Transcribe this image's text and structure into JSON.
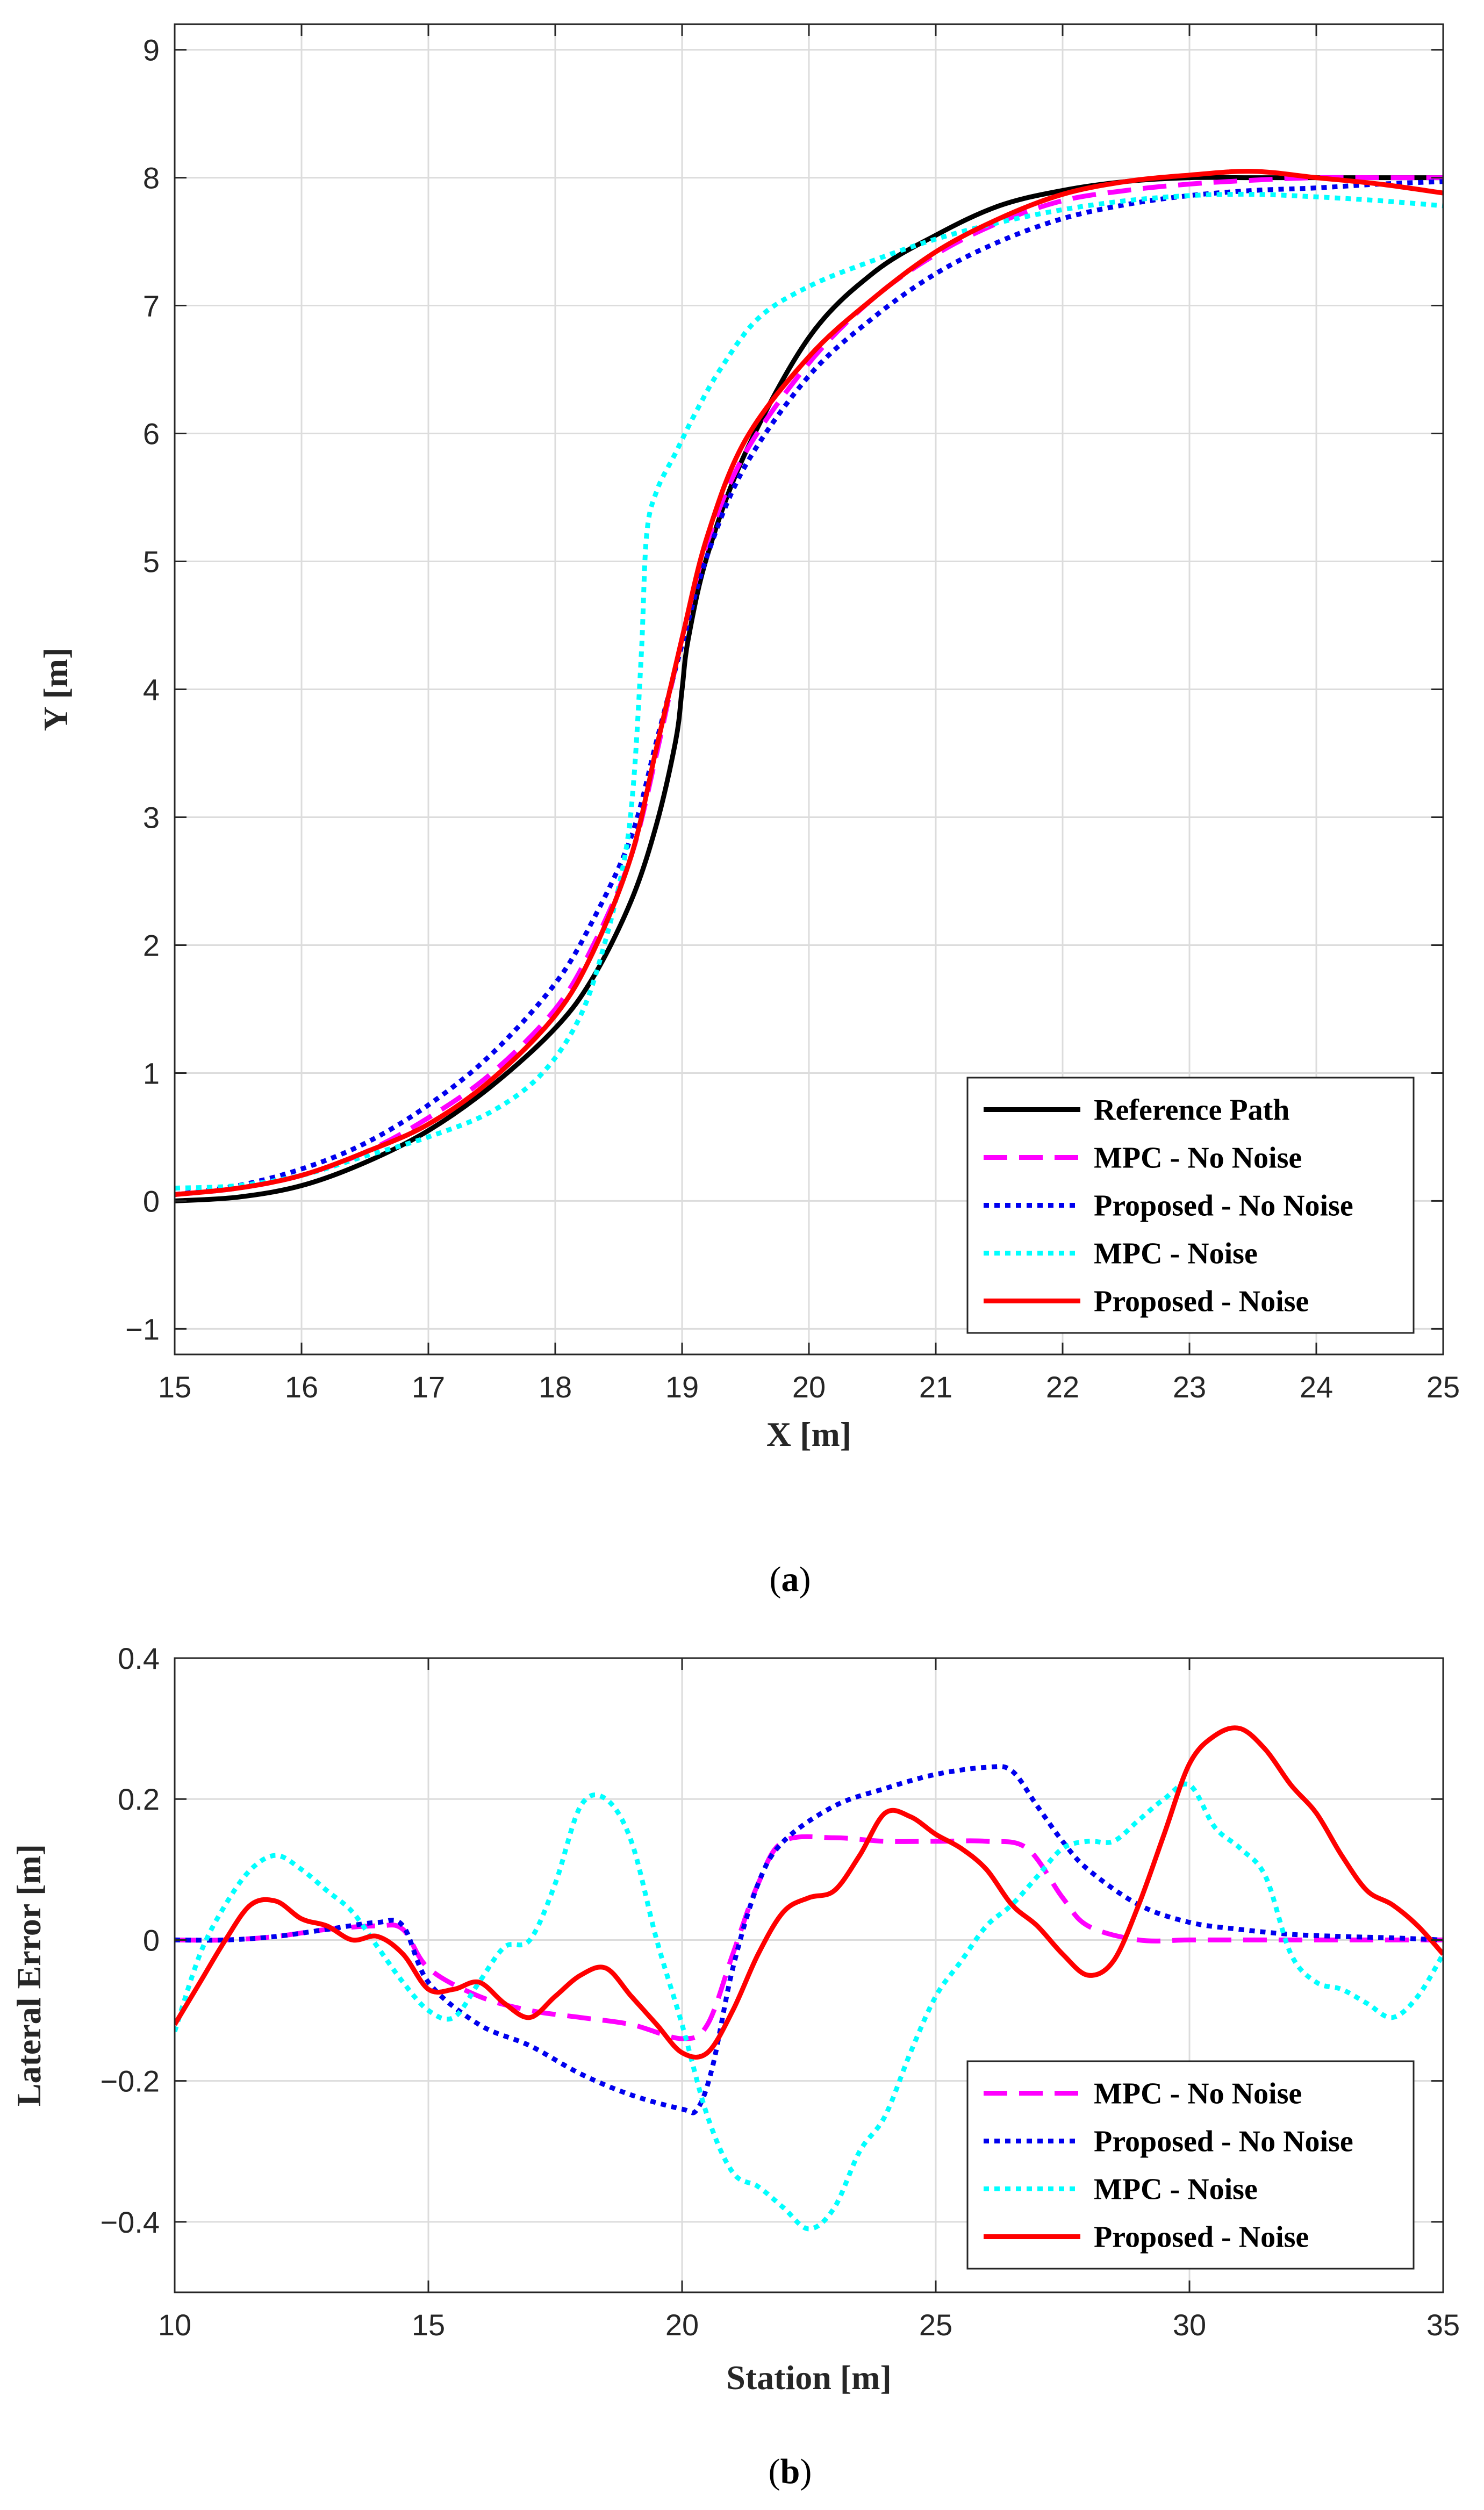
{
  "chart_data": [
    {
      "type": "line",
      "subplot_label": "(a)",
      "subplot_letter": "a",
      "xlabel": "X [m]",
      "ylabel": "Y [m]",
      "xlim": [
        15,
        25
      ],
      "ylim": [
        -1.2,
        9.2
      ],
      "xticks": [
        "15",
        "16",
        "17",
        "18",
        "19",
        "20",
        "21",
        "22",
        "23",
        "24",
        "25"
      ],
      "yticks": [
        "−1",
        "0",
        "1",
        "2",
        "3",
        "4",
        "5",
        "6",
        "7",
        "8",
        "9"
      ],
      "grid": true,
      "legend_position": "bottom-right",
      "series": [
        {
          "name": "Reference Path",
          "color": "#000000",
          "style": "solid",
          "x": [
            15,
            15.5,
            16,
            16.5,
            17,
            17.5,
            18,
            18.3,
            18.6,
            18.8,
            18.95,
            19,
            19.05,
            19.2,
            19.5,
            20,
            20.5,
            21,
            21.5,
            22,
            22.5,
            23,
            23.5,
            24,
            24.5,
            25
          ],
          "y": [
            0,
            0.03,
            0.12,
            0.3,
            0.55,
            0.9,
            1.35,
            1.75,
            2.35,
            2.95,
            3.6,
            4.0,
            4.4,
            5.05,
            5.85,
            6.75,
            7.25,
            7.55,
            7.78,
            7.9,
            7.97,
            8.0,
            8.0,
            8.0,
            8.0,
            8.0
          ]
        },
        {
          "name": "MPC - No Noise",
          "color": "#ff00ff",
          "style": "dashed",
          "x": [
            15,
            15.5,
            16,
            16.5,
            17,
            17.5,
            18,
            18.3,
            18.6,
            18.8,
            19,
            19.2,
            19.5,
            20,
            20.5,
            21,
            21.5,
            22,
            22.5,
            23,
            23.5,
            24,
            24.5,
            25
          ],
          "y": [
            0.05,
            0.1,
            0.2,
            0.38,
            0.65,
            1.0,
            1.5,
            2.0,
            2.7,
            3.5,
            4.4,
            5.15,
            5.85,
            6.55,
            7.05,
            7.4,
            7.65,
            7.82,
            7.9,
            7.95,
            7.98,
            8.0,
            8.0,
            8.0
          ]
        },
        {
          "name": "Proposed - No Noise",
          "color": "#0000ee",
          "style": "dotted",
          "x": [
            15,
            15.5,
            16,
            16.5,
            17,
            17.5,
            18,
            18.3,
            18.6,
            18.8,
            19,
            19.2,
            19.5,
            20,
            20.5,
            21,
            21.5,
            22,
            22.5,
            23,
            23.5,
            24,
            24.5,
            25
          ],
          "y": [
            0.05,
            0.12,
            0.25,
            0.45,
            0.75,
            1.15,
            1.7,
            2.2,
            2.85,
            3.6,
            4.35,
            5.05,
            5.75,
            6.45,
            6.9,
            7.25,
            7.5,
            7.68,
            7.79,
            7.86,
            7.9,
            7.92,
            7.95,
            7.97
          ]
        },
        {
          "name": "MPC - Noise",
          "color": "#00ffff",
          "style": "dotted",
          "x": [
            15,
            15.5,
            16,
            16.5,
            17,
            17.5,
            17.9,
            18.2,
            18.4,
            18.55,
            18.62,
            18.68,
            18.72,
            18.8,
            18.95,
            19.1,
            19.3,
            19.6,
            20,
            20.5,
            21,
            21.5,
            22,
            22.5,
            23,
            23.5,
            24,
            24.5,
            25
          ],
          "y": [
            0.1,
            0.12,
            0.2,
            0.35,
            0.5,
            0.7,
            1.0,
            1.45,
            2.05,
            2.7,
            3.3,
            4.3,
            5.2,
            5.55,
            5.85,
            6.15,
            6.5,
            6.9,
            7.15,
            7.35,
            7.52,
            7.65,
            7.75,
            7.82,
            7.86,
            7.87,
            7.85,
            7.82,
            7.78
          ]
        },
        {
          "name": "Proposed - Noise",
          "color": "#ff0000",
          "style": "solid",
          "x": [
            15,
            15.5,
            16,
            16.5,
            17,
            17.5,
            18,
            18.3,
            18.6,
            18.8,
            19,
            19.2,
            19.5,
            20,
            20.5,
            21,
            21.5,
            22,
            22.5,
            23,
            23.5,
            24,
            24.5,
            25
          ],
          "y": [
            0.05,
            0.1,
            0.2,
            0.38,
            0.6,
            0.95,
            1.45,
            1.95,
            2.7,
            3.55,
            4.4,
            5.2,
            5.95,
            6.6,
            7.05,
            7.42,
            7.68,
            7.87,
            7.97,
            8.02,
            8.05,
            8.0,
            7.95,
            7.88
          ]
        }
      ],
      "legend": [
        "Reference Path",
        "MPC - No Noise",
        "Proposed - No Noise",
        "MPC - Noise",
        "Proposed - Noise"
      ]
    },
    {
      "type": "line",
      "subplot_label": "(b)",
      "subplot_letter": "b",
      "xlabel": "Station [m]",
      "ylabel": "Lateral Error [m]",
      "xlim": [
        10,
        35
      ],
      "ylim": [
        -0.5,
        0.4
      ],
      "xticks": [
        "10",
        "15",
        "20",
        "25",
        "30",
        "35"
      ],
      "yticks": [
        "−0.4",
        "−0.2",
        "0",
        "0.2",
        "0.4"
      ],
      "grid": true,
      "legend_position": "bottom-right",
      "series": [
        {
          "name": "MPC - No Noise",
          "color": "#ff00ff",
          "style": "dashed",
          "x": [
            10,
            11,
            12,
            13,
            14,
            14.5,
            15,
            16,
            17,
            18,
            19,
            20,
            20.5,
            21,
            21.5,
            22,
            23,
            24,
            25,
            26,
            26.8,
            27.5,
            28,
            29,
            30,
            31,
            32,
            33,
            34,
            35
          ],
          "y": [
            0,
            0,
            0.005,
            0.015,
            0.02,
            0.015,
            -0.04,
            -0.08,
            -0.1,
            -0.11,
            -0.12,
            -0.14,
            -0.12,
            -0.02,
            0.08,
            0.14,
            0.145,
            0.14,
            0.14,
            0.14,
            0.13,
            0.06,
            0.02,
            0.0,
            0.0,
            0.0,
            0.0,
            0.0,
            0.0,
            0.0
          ]
        },
        {
          "name": "Proposed - No Noise",
          "color": "#0000ee",
          "style": "dotted",
          "x": [
            10,
            11,
            12,
            13,
            14,
            14.5,
            15,
            16,
            17,
            18,
            19,
            20,
            20.3,
            20.6,
            21,
            21.5,
            22,
            23,
            24,
            25,
            26,
            26.5,
            27,
            27.5,
            28,
            29,
            30,
            31,
            32,
            33,
            34,
            35
          ],
          "y": [
            0,
            0,
            0.005,
            0.015,
            0.025,
            0.02,
            -0.06,
            -0.12,
            -0.15,
            -0.19,
            -0.22,
            -0.24,
            -0.24,
            -0.18,
            -0.04,
            0.08,
            0.14,
            0.19,
            0.215,
            0.235,
            0.245,
            0.24,
            0.19,
            0.14,
            0.1,
            0.05,
            0.025,
            0.015,
            0.008,
            0.005,
            0.003,
            0.0
          ]
        },
        {
          "name": "MPC - Noise",
          "color": "#00ffff",
          "style": "dotted",
          "x": [
            10,
            10.5,
            11,
            11.5,
            12,
            12.5,
            13,
            13.5,
            14,
            14.5,
            15,
            15.5,
            16,
            16.5,
            17,
            17.5,
            18,
            18.5,
            19,
            19.5,
            20,
            20.5,
            21,
            21.5,
            22,
            22.5,
            23,
            23.5,
            24,
            24.5,
            25,
            25.5,
            26,
            26.5,
            27,
            27.5,
            28,
            28.5,
            29,
            29.5,
            30,
            30.5,
            31,
            31.5,
            32,
            32.5,
            33,
            33.5,
            34,
            34.5,
            35
          ],
          "y": [
            -0.13,
            -0.02,
            0.05,
            0.1,
            0.12,
            0.1,
            0.07,
            0.04,
            -0.01,
            -0.06,
            -0.1,
            -0.11,
            -0.06,
            -0.01,
            0.0,
            0.08,
            0.19,
            0.2,
            0.14,
            0.0,
            -0.12,
            -0.25,
            -0.33,
            -0.35,
            -0.38,
            -0.41,
            -0.38,
            -0.3,
            -0.25,
            -0.16,
            -0.08,
            -0.03,
            0.02,
            0.05,
            0.09,
            0.13,
            0.14,
            0.14,
            0.17,
            0.2,
            0.22,
            0.16,
            0.13,
            0.09,
            -0.02,
            -0.06,
            -0.07,
            -0.09,
            -0.11,
            -0.08,
            -0.02
          ]
        },
        {
          "name": "Proposed - Noise",
          "color": "#ff0000",
          "style": "solid",
          "x": [
            10,
            10.5,
            11,
            11.5,
            12,
            12.5,
            13,
            13.5,
            14,
            14.5,
            15,
            15.5,
            16,
            16.5,
            17,
            17.5,
            18,
            18.5,
            19,
            19.5,
            20,
            20.5,
            21,
            21.5,
            22,
            22.5,
            23,
            23.5,
            24,
            24.5,
            25,
            25.5,
            26,
            26.5,
            27,
            27.5,
            28,
            28.5,
            29,
            29.5,
            30,
            30.5,
            31,
            31.5,
            32,
            32.5,
            33,
            33.5,
            34,
            34.5,
            35
          ],
          "y": [
            -0.12,
            -0.06,
            0.0,
            0.05,
            0.055,
            0.03,
            0.02,
            0.0,
            0.005,
            -0.02,
            -0.07,
            -0.07,
            -0.06,
            -0.09,
            -0.11,
            -0.08,
            -0.05,
            -0.04,
            -0.08,
            -0.12,
            -0.16,
            -0.16,
            -0.1,
            -0.02,
            0.04,
            0.06,
            0.07,
            0.12,
            0.18,
            0.175,
            0.15,
            0.13,
            0.1,
            0.05,
            0.02,
            -0.02,
            -0.05,
            -0.03,
            0.05,
            0.15,
            0.25,
            0.29,
            0.3,
            0.27,
            0.22,
            0.18,
            0.12,
            0.07,
            0.05,
            0.02,
            -0.02
          ]
        }
      ],
      "legend": [
        "MPC - No Noise",
        "Proposed - No Noise",
        "MPC - Noise",
        "Proposed - Noise"
      ]
    }
  ]
}
